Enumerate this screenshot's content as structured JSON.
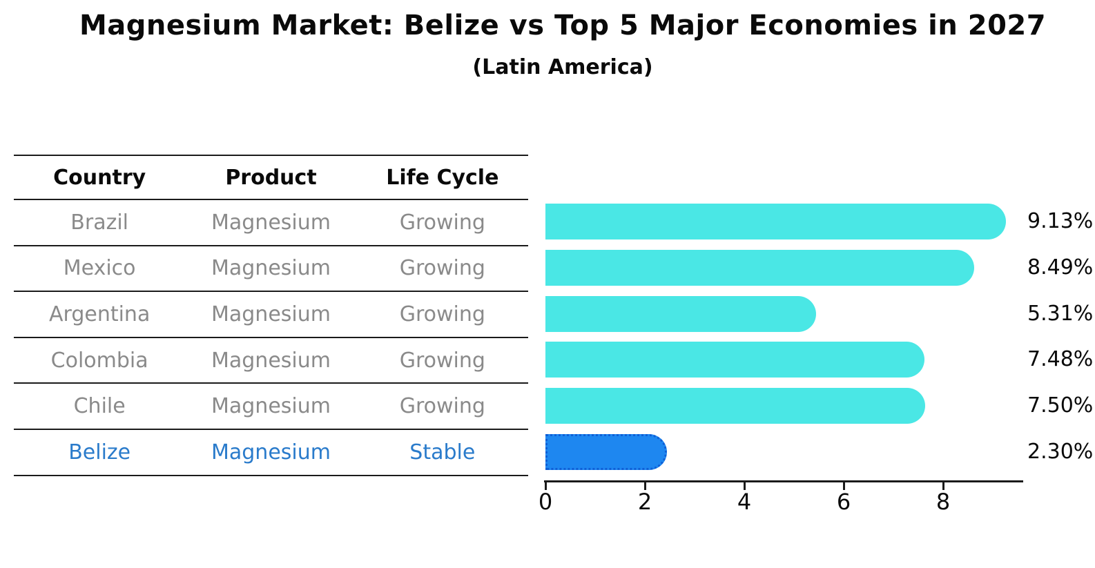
{
  "title": "Magnesium Market: Belize vs Top 5 Major Economies in 2027",
  "subtitle": "(Latin America)",
  "colors": {
    "bar_default": "#4AE7E5",
    "bar_highlight": "#1E87F0",
    "bar_highlight_border": "#0F5FD6",
    "table_text_muted": "#8A8A8A",
    "table_text_highlight": "#2A7BCB",
    "text_primary": "#0A0A0A"
  },
  "table": {
    "headers": [
      "Country",
      "Product",
      "Life Cycle"
    ],
    "rows": [
      {
        "country": "Brazil",
        "product": "Magnesium",
        "life_cycle": "Growing",
        "highlight": false
      },
      {
        "country": "Mexico",
        "product": "Magnesium",
        "life_cycle": "Growing",
        "highlight": false
      },
      {
        "country": "Argentina",
        "product": "Magnesium",
        "life_cycle": "Growing",
        "highlight": false
      },
      {
        "country": "Colombia",
        "product": "Magnesium",
        "life_cycle": "Growing",
        "highlight": false
      },
      {
        "country": "Chile",
        "product": "Magnesium",
        "life_cycle": "Growing",
        "highlight": false
      },
      {
        "country": "Belize",
        "product": "Magnesium",
        "life_cycle": "Stable",
        "highlight": true
      }
    ]
  },
  "chart_data": {
    "type": "bar",
    "orientation": "horizontal",
    "title": "Magnesium Market: Belize vs Top 5 Major Economies in 2027",
    "subtitle": "(Latin America)",
    "categories": [
      "Brazil",
      "Mexico",
      "Argentina",
      "Colombia",
      "Chile",
      "Belize"
    ],
    "values": [
      9.13,
      8.49,
      5.31,
      7.48,
      7.5,
      2.3
    ],
    "value_labels": [
      "9.13%",
      "8.49%",
      "5.31%",
      "7.48%",
      "7.50%",
      "2.30%"
    ],
    "highlight_index": 5,
    "x_ticks": [
      0,
      2,
      4,
      6,
      8
    ],
    "xlim": [
      0,
      9.6
    ],
    "xlabel": "",
    "ylabel": "",
    "grid": false,
    "legend": false
  }
}
